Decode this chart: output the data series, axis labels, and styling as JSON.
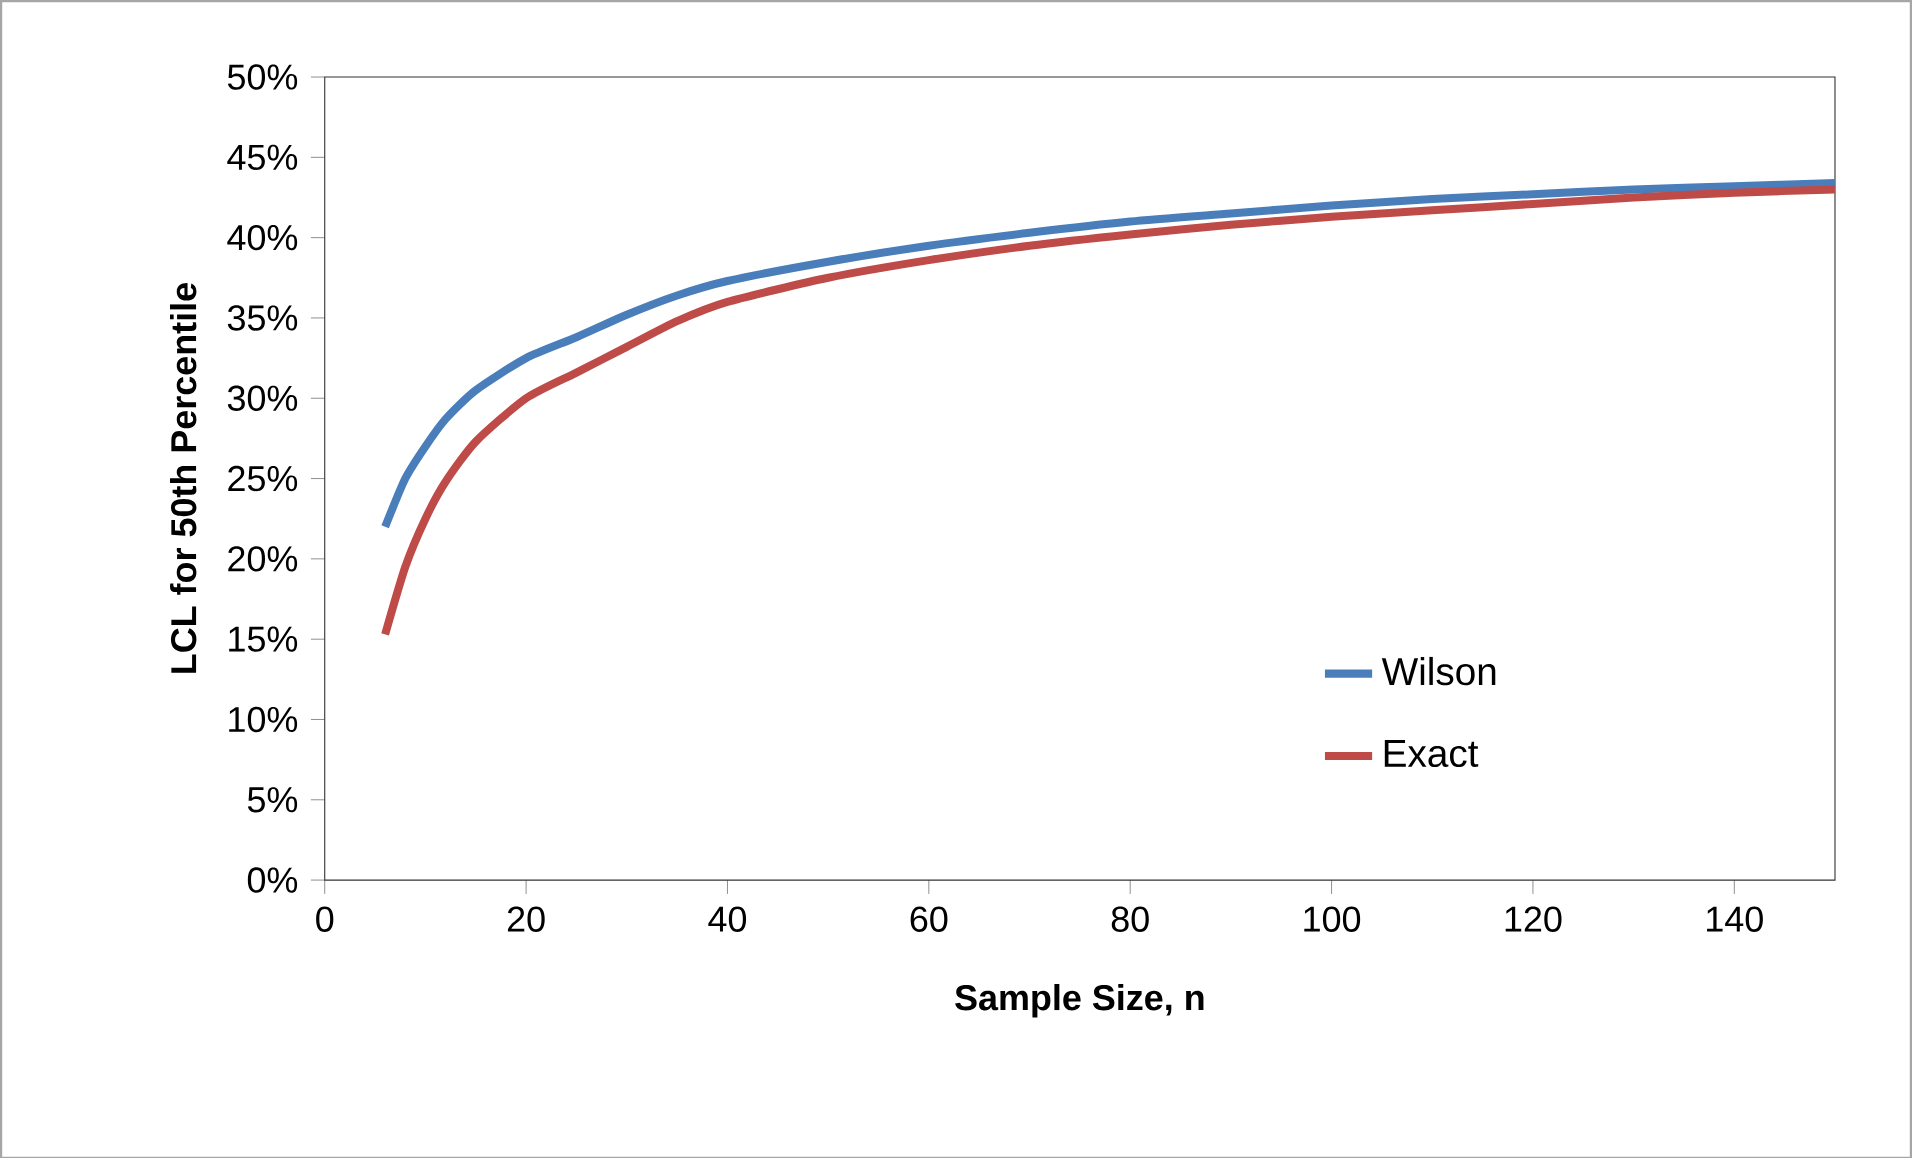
{
  "chart_data": {
    "type": "line",
    "xlabel": "Sample Size, n",
    "ylabel": "LCL for 50th Percentile",
    "xlim": [
      0,
      150
    ],
    "xticks": [
      0,
      20,
      40,
      60,
      80,
      100,
      120,
      140
    ],
    "ylim": [
      0,
      50
    ],
    "yticks": [
      {
        "value": 0,
        "label": "0%"
      },
      {
        "value": 5,
        "label": "5%"
      },
      {
        "value": 10,
        "label": "10%"
      },
      {
        "value": 15,
        "label": "15%"
      },
      {
        "value": 20,
        "label": "20%"
      },
      {
        "value": 25,
        "label": "25%"
      },
      {
        "value": 30,
        "label": "30%"
      },
      {
        "value": 35,
        "label": "35%"
      },
      {
        "value": 40,
        "label": "40%"
      },
      {
        "value": 45,
        "label": "45%"
      },
      {
        "value": 50,
        "label": "50%"
      }
    ],
    "x": [
      6,
      8,
      10,
      12,
      15,
      20,
      25,
      30,
      35,
      40,
      50,
      60,
      70,
      80,
      90,
      100,
      110,
      120,
      130,
      140,
      150
    ],
    "series": [
      {
        "name": "Wilson",
        "color": "#4a7ebb",
        "values": [
          22,
          25,
          27,
          28.7,
          30.5,
          32.5,
          33.8,
          35.2,
          36.4,
          37.3,
          38.5,
          39.5,
          40.3,
          41,
          41.5,
          42,
          42.4,
          42.7,
          43,
          43.2,
          43.4
        ]
      },
      {
        "name": "Exact",
        "color": "#be4b48",
        "values": [
          15.3,
          19.5,
          22.5,
          24.8,
          27.3,
          30,
          31.6,
          33.2,
          34.8,
          36,
          37.5,
          38.6,
          39.5,
          40.2,
          40.8,
          41.3,
          41.7,
          42.1,
          42.5,
          42.8,
          43
        ]
      }
    ],
    "legend": "bottom right",
    "grid": false,
    "marker": "none",
    "line_style": "solid"
  }
}
